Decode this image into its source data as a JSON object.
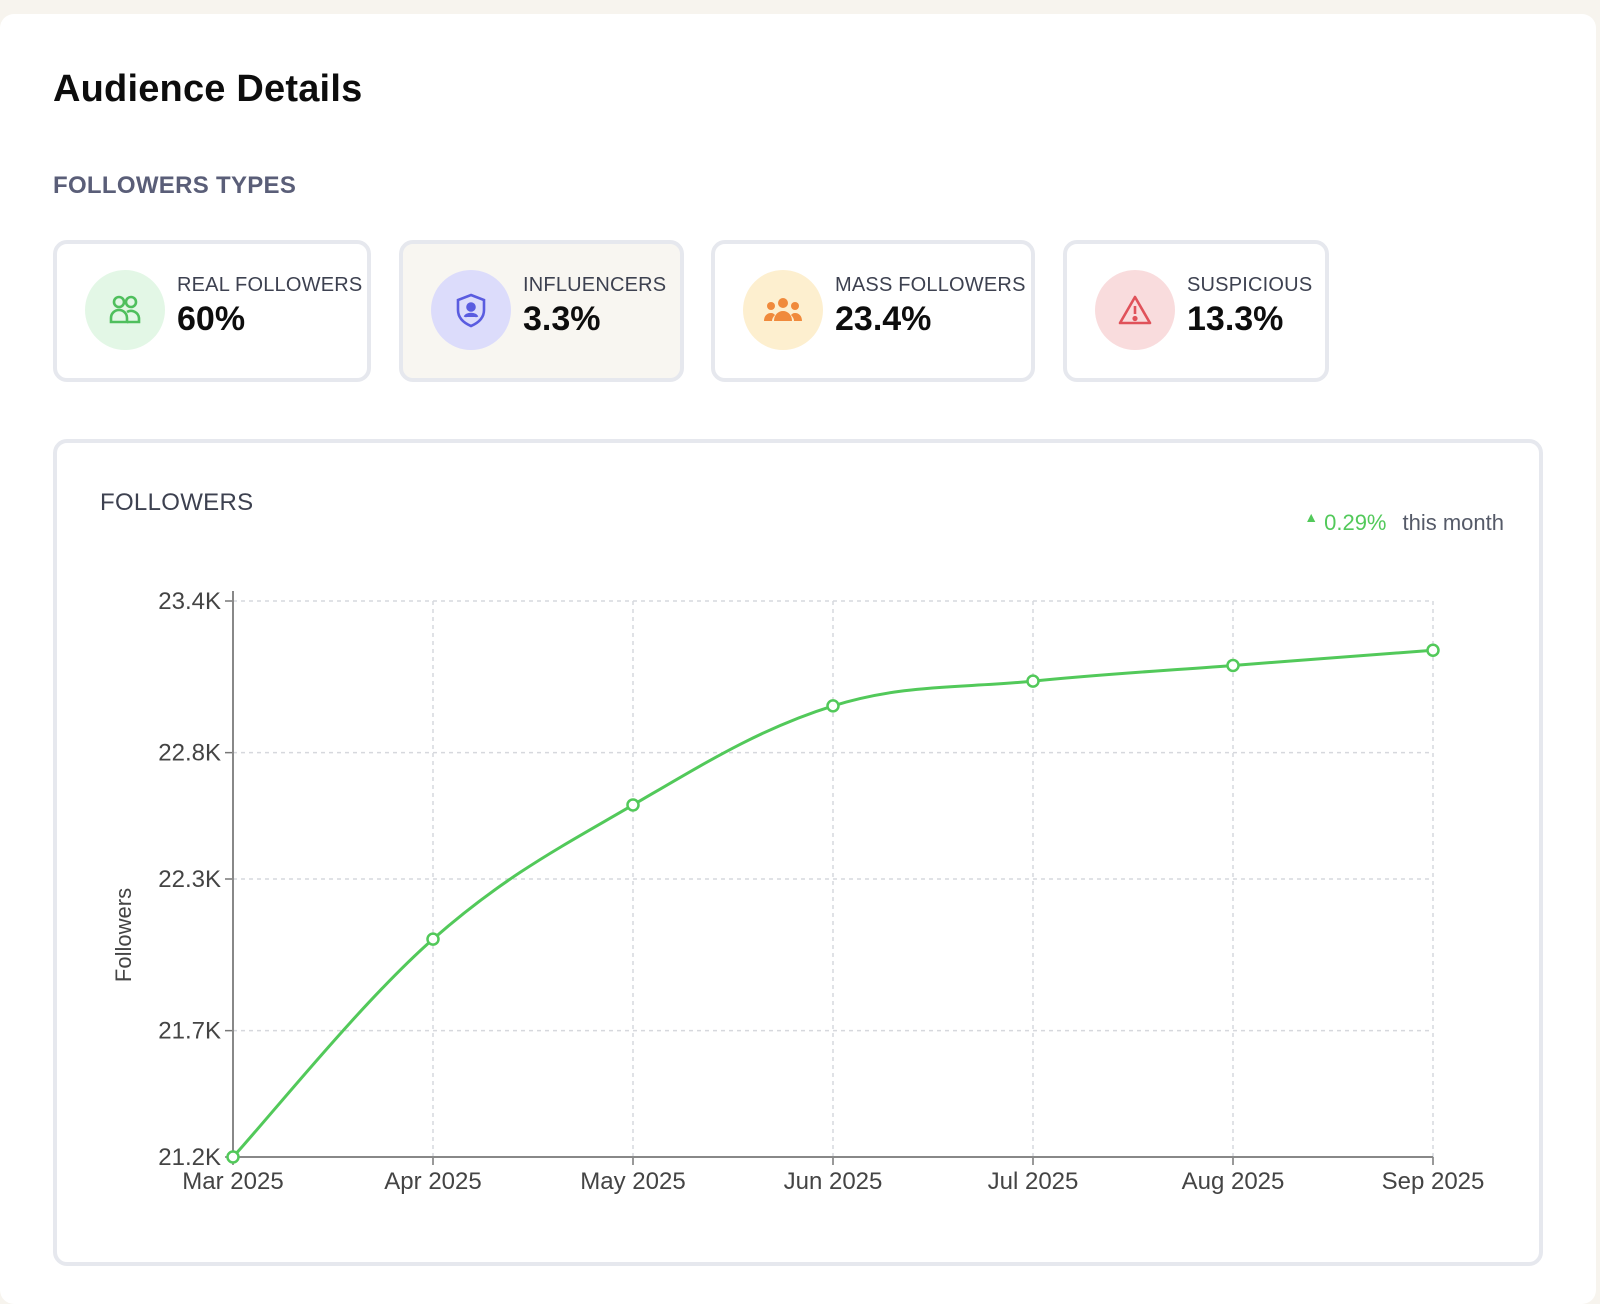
{
  "page": {
    "title": "Audience Details"
  },
  "followers_types": {
    "title": "FOLLOWERS TYPES",
    "cards": [
      {
        "label": "REAL FOLLOWERS",
        "value": "60%",
        "icon": "users-icon",
        "bg": "#e3f7e6",
        "fg": "#4fbf5d"
      },
      {
        "label": "INFLUENCERS",
        "value": "3.3%",
        "icon": "shield-user-icon",
        "bg": "#dcdcfb",
        "fg": "#5a5ce0"
      },
      {
        "label": "MASS FOLLOWERS",
        "value": "23.4%",
        "icon": "group-icon",
        "bg": "#fdefcf",
        "fg": "#f08a3c"
      },
      {
        "label": "SUSPICIOUS",
        "value": "13.3%",
        "icon": "warning-icon",
        "bg": "#f9dcdd",
        "fg": "#e0525a"
      }
    ]
  },
  "followers_chart": {
    "title": "FOLLOWERS",
    "trend_value": "0.29%",
    "trend_text": "this month",
    "trend_color": "#52c95a"
  },
  "chart_data": {
    "type": "line",
    "title": "FOLLOWERS",
    "xlabel": "",
    "ylabel": "Followers",
    "categories": [
      "Mar 2025",
      "Apr 2025",
      "May 2025",
      "Jun 2025",
      "Jul 2025",
      "Aug 2025",
      "Sep 2025"
    ],
    "series": [
      {
        "name": "Followers",
        "values": [
          21200,
          22062,
          22593,
          22985,
          23083,
          23145,
          23205
        ],
        "color": "#52c95a"
      }
    ],
    "yticks": [
      21200,
      21700,
      22300,
      22800,
      23400
    ],
    "ytick_labels": [
      "21.2K",
      "21.7K",
      "22.3K",
      "22.8K",
      "23.4K"
    ],
    "ylim": [
      21200,
      23400
    ],
    "grid": true
  }
}
